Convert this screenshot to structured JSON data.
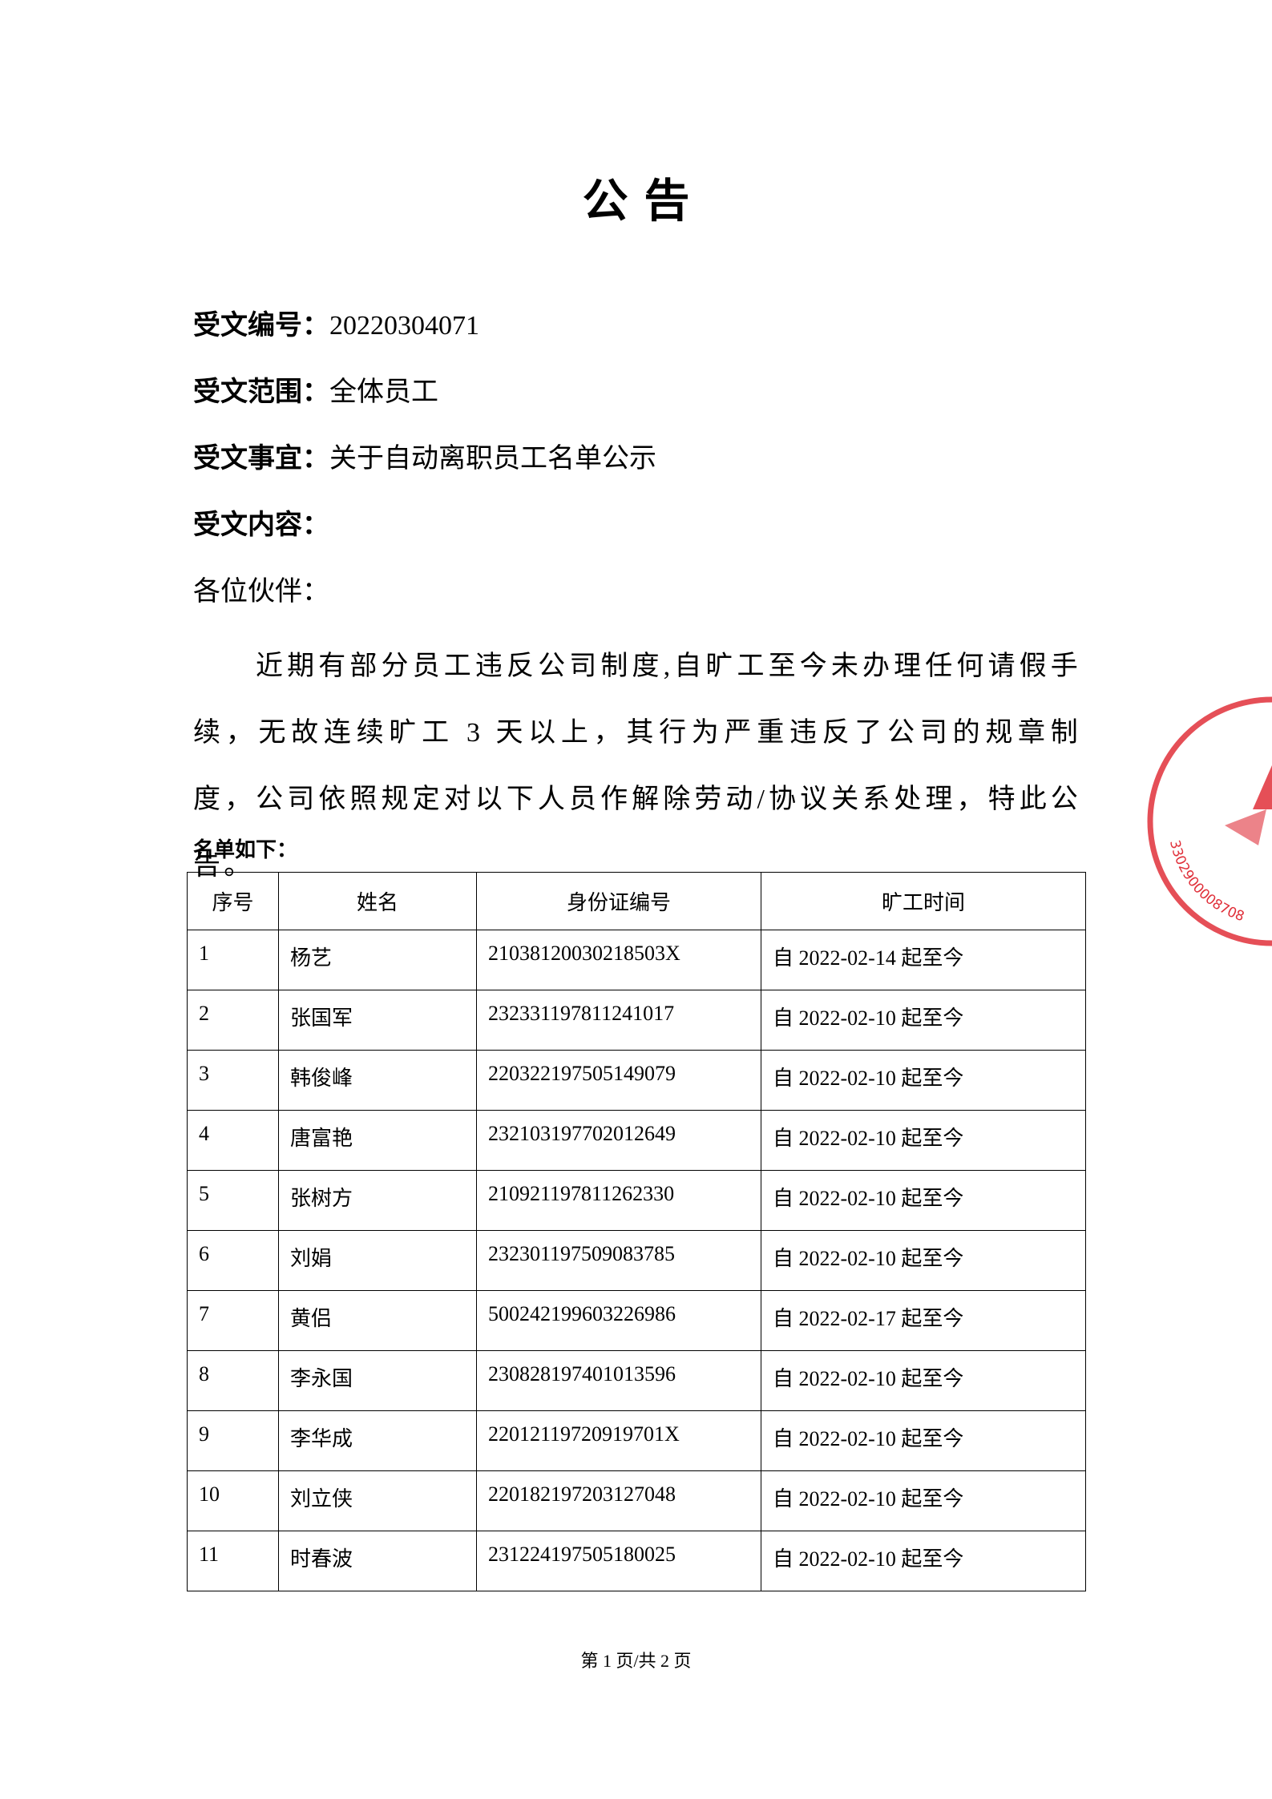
{
  "title": "公 告",
  "fields": [
    {
      "label": "受文编号：",
      "value": "20220304071"
    },
    {
      "label": "受文范围：",
      "value": "全体员工"
    },
    {
      "label": "受文事宜：",
      "value": "关于自动离职员工名单公示"
    },
    {
      "label": "受文内容：",
      "value": null
    }
  ],
  "greeting": "各位伙伴：",
  "paragraph": "近期有部分员工违反公司制度,自旷工至今未办理任何请假手续，无故连续旷工 3 天以上，其行为严重违反了公司的规章制度，公司依照规定对以下人员作解除劳动/协议关系处理，特此公告。",
  "list_title": "名单如下：",
  "table": {
    "headers": [
      "序号",
      "姓名",
      "身份证编号",
      "旷工时间"
    ],
    "rows": [
      [
        "1",
        "杨艺",
        "21038120030218503X",
        "自 2022-02-14 起至今"
      ],
      [
        "2",
        "张国军",
        "232331197811241017",
        "自 2022-02-10 起至今"
      ],
      [
        "3",
        "韩俊峰",
        "220322197505149079",
        "自 2022-02-10 起至今"
      ],
      [
        "4",
        "唐富艳",
        "232103197702012649",
        "自 2022-02-10 起至今"
      ],
      [
        "5",
        "张树方",
        "210921197811262330",
        "自 2022-02-10 起至今"
      ],
      [
        "6",
        "刘娟",
        "232301197509083785",
        "自 2022-02-10 起至今"
      ],
      [
        "7",
        "黄侣",
        "500242199603226986",
        "自 2022-02-17 起至今"
      ],
      [
        "8",
        "李永国",
        "230828197401013596",
        "自 2022-02-10 起至今"
      ],
      [
        "9",
        "李华成",
        "22012119720919701X",
        "自 2022-02-10 起至今"
      ],
      [
        "10",
        "刘立侠",
        "220182197203127048",
        "自 2022-02-10 起至今"
      ],
      [
        "11",
        "时春波",
        "231224197505180025",
        "自 2022-02-10 起至今"
      ]
    ]
  },
  "stamp": {
    "code": "3302900008708"
  },
  "footer": "第 1 页/共 2 页"
}
